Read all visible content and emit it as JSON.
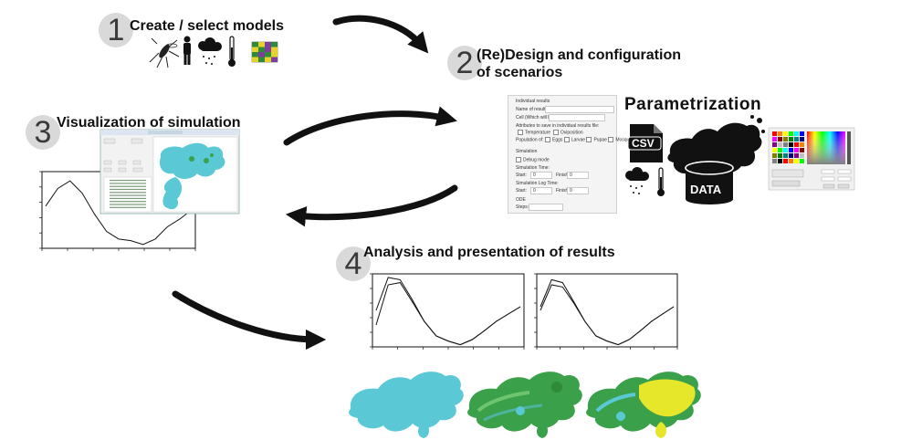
{
  "steps": [
    {
      "number": "1",
      "title": "Create / select models"
    },
    {
      "number": "2",
      "title_line1": "(Re)Design and configuration",
      "title_line2": "of scenarios"
    },
    {
      "number": "3",
      "title": "Visualization of simulation"
    },
    {
      "number": "4",
      "title": "Analysis and presentation of results"
    }
  ],
  "parametrization": {
    "heading": "Parametrization",
    "csv_label": "CSV",
    "data_label": "DATA"
  },
  "config_panel": {
    "section_results": "Individual results",
    "name_label": "Name of results file:",
    "cell_label": "Cell (Which will be saved):",
    "attributes_label": "Attributes to save in individual results file:",
    "temperature": "Temperature",
    "oviposition": "Oviposition",
    "population_label": "Population of:",
    "eggs": "Eggs",
    "larvae": "Larvae",
    "pupae": "Pupae",
    "mosquitoes": "Mosquitoes",
    "section_simulation": "Simulation",
    "debug": "Debug mode",
    "sim_time": "Simulation Time:",
    "start": "Start:",
    "start_val": "0",
    "finish": "Finish:",
    "finish_val": "0",
    "sim_log_time": "Simulation Log Time:",
    "log_start_val": "0",
    "log_finish_val": "0",
    "ode": "ODE",
    "steps": "Steps:"
  },
  "chart_data": [
    {
      "type": "line",
      "series": [
        {
          "values": [
            0.55,
            0.78,
            0.88,
            0.72,
            0.45,
            0.22,
            0.12,
            0.1,
            0.05,
            0.12,
            0.28,
            0.38,
            0.5
          ]
        }
      ]
    },
    {
      "type": "line",
      "series": [
        {
          "values": [
            0.5,
            0.95,
            0.92,
            0.65,
            0.35,
            0.15,
            0.08,
            0.03,
            0.1,
            0.22,
            0.35,
            0.45,
            0.55
          ]
        },
        {
          "values": [
            0.3,
            0.85,
            0.88,
            0.62,
            0.35,
            0.15,
            0.08,
            0.03,
            0.1,
            0.22,
            0.35,
            0.45,
            0.55
          ]
        }
      ]
    },
    {
      "type": "line",
      "series": [
        {
          "values": [
            0.55,
            0.92,
            0.88,
            0.62,
            0.35,
            0.15,
            0.08,
            0.03,
            0.1,
            0.22,
            0.35,
            0.45,
            0.55
          ]
        },
        {
          "values": [
            0.5,
            0.85,
            0.82,
            0.6,
            0.35,
            0.15,
            0.08,
            0.03,
            0.1,
            0.22,
            0.35,
            0.45,
            0.55
          ]
        }
      ]
    }
  ],
  "colors": {
    "map_cyan": "#5bc8d6",
    "map_green": "#3aa04a",
    "map_teal": "#4fb3a0",
    "map_yellow": "#e6e62a",
    "arrow": "#111111",
    "number_circle": "#d9d9d9"
  },
  "icons": [
    "mosquito-icon",
    "person-icon",
    "rain-cloud-icon",
    "thermometer-icon",
    "grid-map-icon",
    "csv-file-icon",
    "database-icon",
    "color-picker-icon"
  ]
}
